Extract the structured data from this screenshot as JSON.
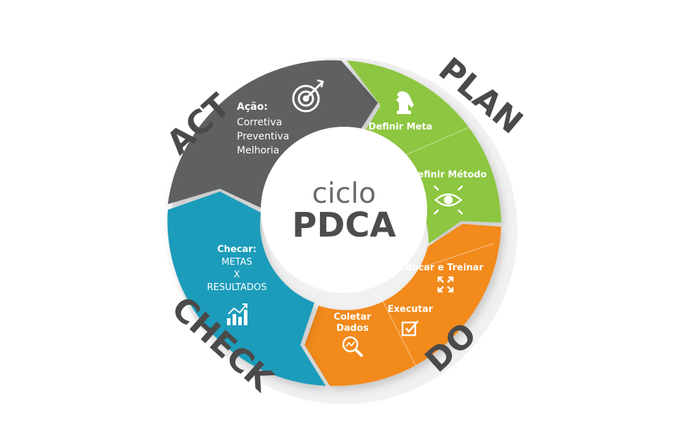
{
  "center": {
    "line1": "ciclo",
    "line2": "PDCA"
  },
  "phases": {
    "plan": {
      "title": "PLAN",
      "items": [
        "Definir Meta",
        "Definir Método"
      ],
      "icons": [
        "chess-knight-icon",
        "eye-icon"
      ],
      "color": "#8dc63f"
    },
    "do": {
      "title": "DO",
      "items": [
        "Educar e Treinar",
        "Executar",
        "Coletar",
        "Dados"
      ],
      "icons": [
        "expand-arrows-icon",
        "checkbox-icon",
        "magnifier-chart-icon"
      ],
      "color": "#f28a1a"
    },
    "check": {
      "title": "CHECK",
      "heading": "Checar:",
      "lines": [
        "METAS",
        "X",
        "RESULTADOS"
      ],
      "icon": "bar-chart-icon",
      "color": "#1b9cbb"
    },
    "act": {
      "title": "ACT",
      "heading": "Ação:",
      "lines": [
        "Corretiva",
        "Preventiva",
        "Melhoria"
      ],
      "icon": "target-icon",
      "color": "#5f6062"
    }
  }
}
